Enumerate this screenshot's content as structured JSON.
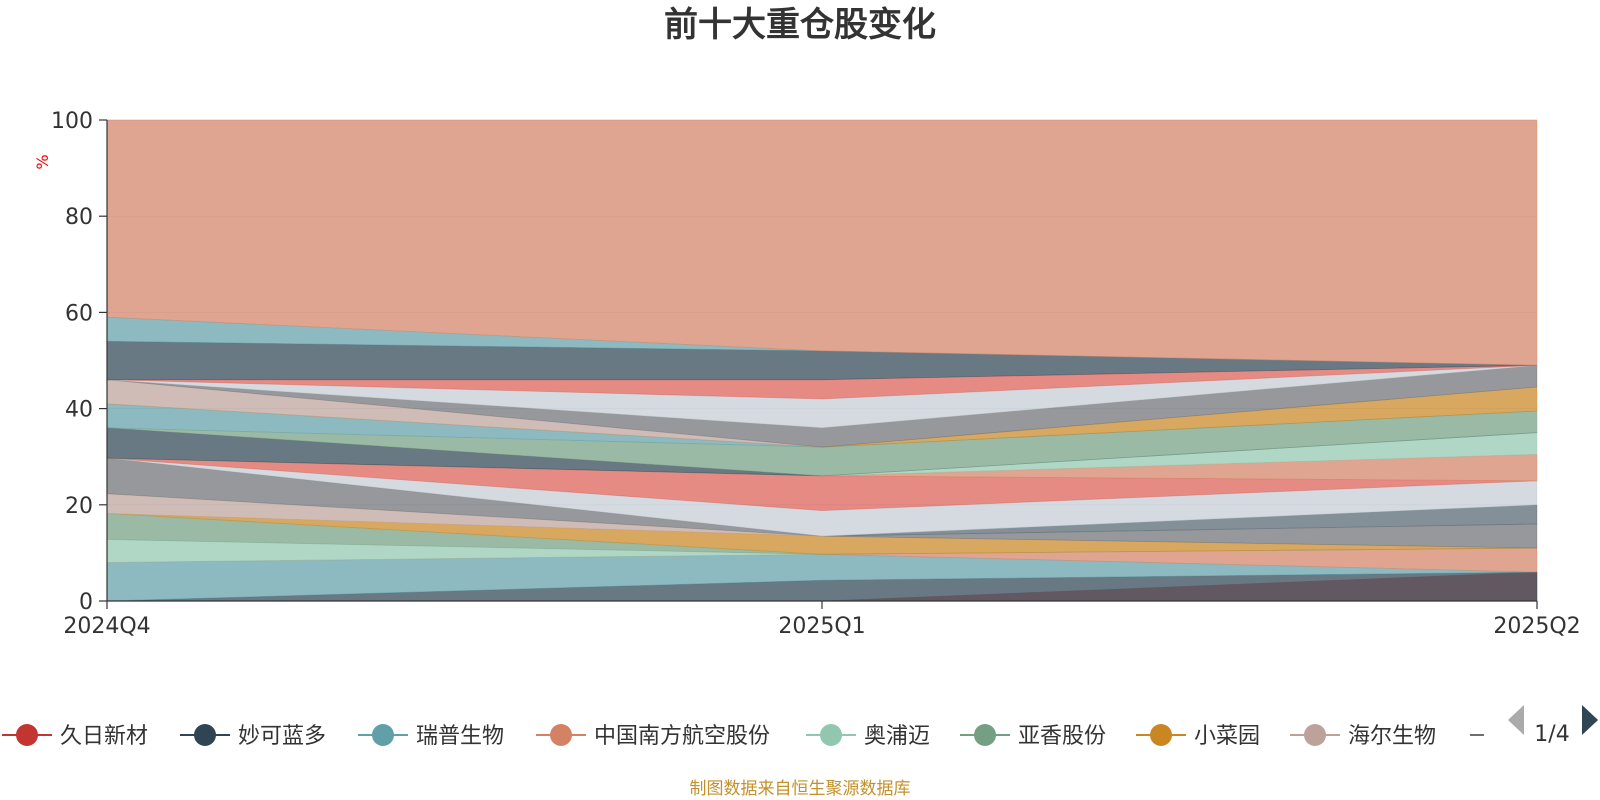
{
  "chart_data": {
    "type": "area",
    "title": "前十大重仓股变化",
    "ylabel": "%",
    "ylim": [
      0,
      100
    ],
    "yticks": [
      0,
      20,
      40,
      60,
      80,
      100
    ],
    "x": [
      "2024Q4",
      "2025Q1",
      "2025Q2"
    ],
    "grid": true,
    "stacked": true,
    "series": [
      {
        "name": "",
        "color": "#dc5d55",
        "base": [
          0,
          0,
          0
        ],
        "top": [
          0,
          0,
          6
        ]
      },
      {
        "name": "",
        "color": "#2f4554",
        "base": [
          0,
          0,
          0
        ],
        "top": [
          0,
          4.3,
          6
        ]
      },
      {
        "name": "",
        "color": "#61a0a8",
        "base": [
          0,
          4.3,
          6
        ],
        "top": [
          8,
          9.7,
          6
        ]
      },
      {
        "name": "",
        "color": "#d48265",
        "base": [
          8,
          9.7,
          6
        ],
        "top": [
          8,
          9.7,
          11
        ]
      },
      {
        "name": "",
        "color": "#91c7ae",
        "base": [
          8,
          9.7,
          11
        ],
        "top": [
          12.8,
          9.7,
          11
        ]
      },
      {
        "name": "",
        "color": "#749f83",
        "base": [
          12.8,
          9.7,
          11
        ],
        "top": [
          18.2,
          9.7,
          11
        ]
      },
      {
        "name": "",
        "color": "#ca8622",
        "base": [
          18.2,
          9.7,
          11
        ],
        "top": [
          18.2,
          13.5,
          11
        ]
      },
      {
        "name": "",
        "color": "#bda29a",
        "base": [
          18.2,
          13.5,
          11
        ],
        "top": [
          22.3,
          13.5,
          11
        ]
      },
      {
        "name": "",
        "color": "#6e7074",
        "base": [
          22.3,
          13.5,
          11
        ],
        "top": [
          29.7,
          13.5,
          16
        ]
      },
      {
        "name": "",
        "color": "#546570",
        "base": [
          29.7,
          13.5,
          16
        ],
        "top": [
          29.7,
          13.5,
          20
        ]
      },
      {
        "name": "",
        "color": "#c4ccd3",
        "base": [
          29.7,
          13.5,
          20
        ],
        "top": [
          29.7,
          18.8,
          25
        ]
      },
      {
        "name": "",
        "color": "#dc5d55",
        "base": [
          29.7,
          18.8,
          25
        ],
        "top": [
          29.7,
          26,
          25
        ]
      },
      {
        "name": "",
        "color": "#d48265",
        "base": [
          29.7,
          26,
          25
        ],
        "top": [
          29.7,
          26,
          30.5
        ]
      },
      {
        "name": "",
        "color": "#91c7ae",
        "base": [
          29.7,
          26,
          30.5
        ],
        "top": [
          29.7,
          26,
          35
        ]
      },
      {
        "name": "",
        "color": "#2f4554",
        "base": [
          29.7,
          26,
          35
        ],
        "top": [
          36,
          26,
          35
        ]
      },
      {
        "name": "",
        "color": "#749f83",
        "base": [
          36,
          26,
          35
        ],
        "top": [
          36,
          32,
          39.5
        ]
      },
      {
        "name": "",
        "color": "#61a0a8",
        "base": [
          36,
          32,
          39.5
        ],
        "top": [
          41,
          32,
          39.5
        ]
      },
      {
        "name": "",
        "color": "#ca8622",
        "base": [
          41,
          32,
          39.5
        ],
        "top": [
          41,
          32,
          44.5
        ]
      },
      {
        "name": "",
        "color": "#bda29a",
        "base": [
          41,
          32,
          44.5
        ],
        "top": [
          46,
          32,
          44.5
        ]
      },
      {
        "name": "",
        "color": "#6e7074",
        "base": [
          46,
          32,
          44.5
        ],
        "top": [
          46,
          36,
          49
        ]
      },
      {
        "name": "",
        "color": "#c4ccd3",
        "base": [
          46,
          36,
          49
        ],
        "top": [
          46,
          42,
          49
        ]
      },
      {
        "name": "",
        "color": "#dc5d55",
        "base": [
          46,
          42,
          49
        ],
        "top": [
          46,
          46,
          49
        ]
      },
      {
        "name": "",
        "color": "#2f4554",
        "base": [
          46,
          46,
          49
        ],
        "top": [
          54,
          52,
          49
        ]
      },
      {
        "name": "",
        "color": "#61a0a8",
        "base": [
          54,
          52,
          49
        ],
        "top": [
          59,
          52,
          49
        ]
      },
      {
        "name": "",
        "color": "#d48265",
        "base": [
          59,
          52,
          49
        ],
        "top": [
          100,
          100,
          100
        ]
      }
    ],
    "legend": {
      "position": "bottom",
      "items": [
        {
          "name": "久日新材",
          "color": "#c23531"
        },
        {
          "name": "妙可蓝多",
          "color": "#2f4554"
        },
        {
          "name": "瑞普生物",
          "color": "#61a0a8"
        },
        {
          "name": "中国南方航空股份",
          "color": "#d48265"
        },
        {
          "name": "奥浦迈",
          "color": "#91c7ae"
        },
        {
          "name": "亚香股份",
          "color": "#749f83"
        },
        {
          "name": "小菜园",
          "color": "#ca8622"
        },
        {
          "name": "海尔生物",
          "color": "#bda29a"
        }
      ],
      "page": "1/4"
    },
    "source": "制图数据来自恒生聚源数据库"
  }
}
